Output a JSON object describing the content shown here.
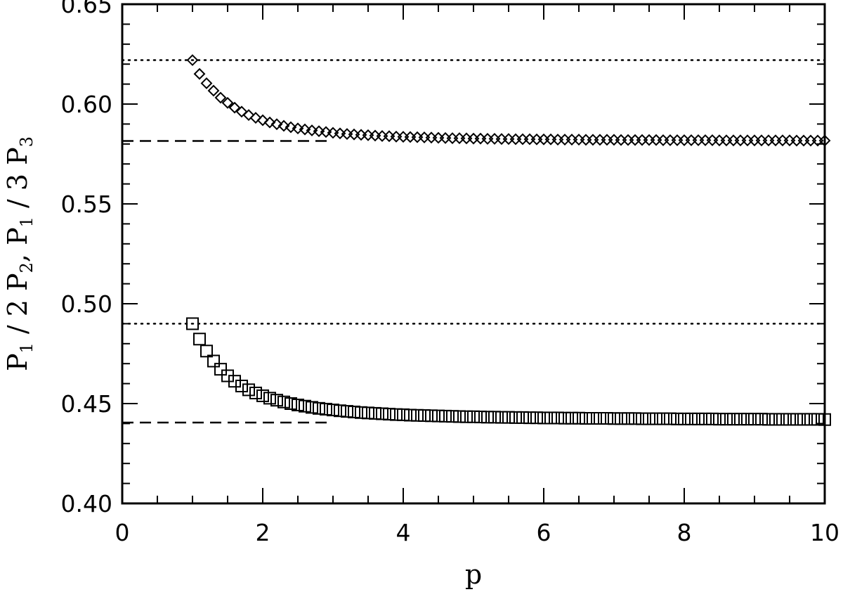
{
  "chart_data": {
    "type": "scatter",
    "xlabel": "p",
    "ylabel": {
      "parts": [
        "P",
        "1",
        " / 2 P",
        "2",
        ", P",
        "1",
        " / 3 P",
        "3"
      ]
    },
    "xlim": [
      0,
      10
    ],
    "ylim": [
      0.4,
      0.65
    ],
    "x_ticks": [
      0,
      2,
      4,
      6,
      8,
      10
    ],
    "x_tick_labels": [
      "0",
      "2",
      "4",
      "6",
      "8",
      "10"
    ],
    "y_ticks": [
      0.4,
      0.45,
      0.5,
      0.55,
      0.6,
      0.65
    ],
    "y_tick_labels": [
      "0.40",
      "0.45",
      "0.50",
      "0.55",
      "0.60",
      "0.65"
    ],
    "grid": false,
    "series": [
      {
        "marker": "diamond",
        "p_start": 1.0,
        "p_step": 0.1,
        "upper_limit": 0.622,
        "asymptote": 0.5815,
        "values": [
          0.622,
          0.6151,
          0.6104,
          0.6067,
          0.6032,
          0.6006,
          0.5982,
          0.5962,
          0.5945,
          0.5931,
          0.5919,
          0.5908,
          0.5899,
          0.5891,
          0.5884,
          0.5878,
          0.5873,
          0.5868,
          0.5864,
          0.586,
          0.5856,
          0.5853,
          0.585,
          0.5848,
          0.5846,
          0.5844,
          0.5842,
          0.584,
          0.5839,
          0.5837,
          0.5836,
          0.5835,
          0.5834,
          0.5833,
          0.5832,
          0.5831,
          0.583,
          0.5829,
          0.5829,
          0.5828,
          0.5827,
          0.5827,
          0.5826,
          0.5826,
          0.5825,
          0.5825,
          0.5824,
          0.5824,
          0.5824,
          0.5823,
          0.5823,
          0.5823,
          0.5822,
          0.5822,
          0.5822,
          0.5822,
          0.5821,
          0.5821,
          0.5821,
          0.5821,
          0.5821,
          0.582,
          0.582,
          0.582,
          0.582,
          0.582,
          0.582,
          0.5819,
          0.5819,
          0.5819,
          0.5819,
          0.5819,
          0.5819,
          0.5819,
          0.5819,
          0.5818,
          0.5818,
          0.5818,
          0.5818,
          0.5818,
          0.5818,
          0.5818,
          0.5818,
          0.5818,
          0.5818,
          0.5818,
          0.5817,
          0.5817,
          0.5817,
          0.5817,
          0.5817
        ]
      },
      {
        "marker": "square",
        "p_start": 1.0,
        "p_step": 0.1,
        "upper_limit": 0.49,
        "asymptote": 0.4405,
        "values": [
          0.49,
          0.4823,
          0.4763,
          0.4713,
          0.4672,
          0.4639,
          0.4612,
          0.4588,
          0.4569,
          0.4553,
          0.4539,
          0.4527,
          0.4517,
          0.4508,
          0.45,
          0.4493,
          0.4487,
          0.4481,
          0.4476,
          0.4472,
          0.4468,
          0.4464,
          0.4461,
          0.4458,
          0.4455,
          0.4453,
          0.4451,
          0.4449,
          0.4447,
          0.4445,
          0.4444,
          0.4442,
          0.4441,
          0.444,
          0.4439,
          0.4438,
          0.4437,
          0.4436,
          0.4435,
          0.4434,
          0.4434,
          0.4433,
          0.4432,
          0.4432,
          0.4431,
          0.4431,
          0.443,
          0.443,
          0.4429,
          0.4429,
          0.4428,
          0.4428,
          0.4428,
          0.4427,
          0.4427,
          0.4427,
          0.4426,
          0.4426,
          0.4426,
          0.4426,
          0.4425,
          0.4425,
          0.4425,
          0.4425,
          0.4424,
          0.4424,
          0.4424,
          0.4424,
          0.4424,
          0.4423,
          0.4423,
          0.4423,
          0.4423,
          0.4423,
          0.4423,
          0.4422,
          0.4422,
          0.4422,
          0.4422,
          0.4422,
          0.4422,
          0.4422,
          0.4421,
          0.4421,
          0.4421,
          0.4421,
          0.4421,
          0.4421,
          0.4421,
          0.4421,
          0.442
        ]
      }
    ]
  }
}
